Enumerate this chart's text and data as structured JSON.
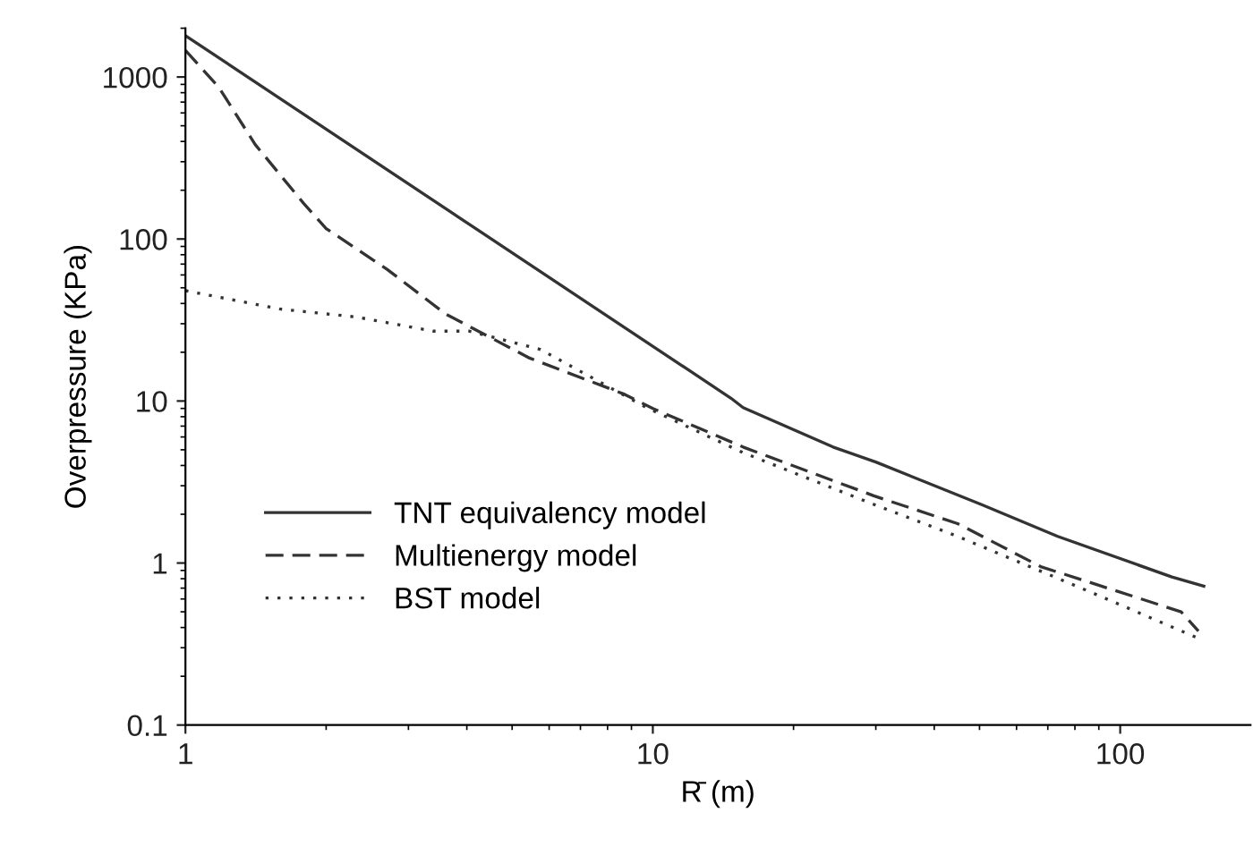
{
  "chart_data": {
    "type": "line",
    "xlabel": "R̄ (m)",
    "ylabel": "Overpressure (KPa)",
    "log": "xy",
    "grid": false,
    "legend": "bottom left",
    "xlim": [
      1,
      190
    ],
    "ylim": [
      0.1,
      2000
    ],
    "xticks": [
      1,
      10,
      100
    ],
    "yticks": [
      0.1,
      1,
      10,
      100,
      1000
    ],
    "series": [
      {
        "name": "TNT equivalency model",
        "color": "#333333",
        "line_style": "solid",
        "x": [
          1,
          14.7,
          15.6,
          24.3,
          30,
          50.4,
          73.5,
          129,
          151
        ],
        "values": [
          1800,
          10.4,
          9.1,
          5.2,
          4.2,
          2.3,
          1.46,
          0.82,
          0.72
        ]
      },
      {
        "name": "Multienergy model",
        "color": "#333333",
        "line_style": "dashed",
        "x": [
          1,
          1.18,
          1.41,
          1.79,
          2.0,
          2.7,
          3.6,
          5.45,
          8.7,
          10,
          15.6,
          29.7,
          44.9,
          67.6,
          111,
          135,
          147
        ],
        "values": [
          1460,
          860,
          383,
          166,
          116,
          65,
          34.5,
          18.4,
          11,
          9,
          5.2,
          2.6,
          1.75,
          0.95,
          0.6,
          0.5,
          0.38
        ]
      },
      {
        "name": "BST model",
        "color": "#333333",
        "line_style": "dotted",
        "x": [
          1,
          1.59,
          2.32,
          3.39,
          4.05,
          5.75,
          9.7,
          15.6,
          29.7,
          44.9,
          90,
          148
        ],
        "values": [
          48,
          37,
          33,
          27,
          27,
          20.8,
          9.1,
          4.8,
          2.3,
          1.46,
          0.63,
          0.34
        ]
      }
    ]
  }
}
